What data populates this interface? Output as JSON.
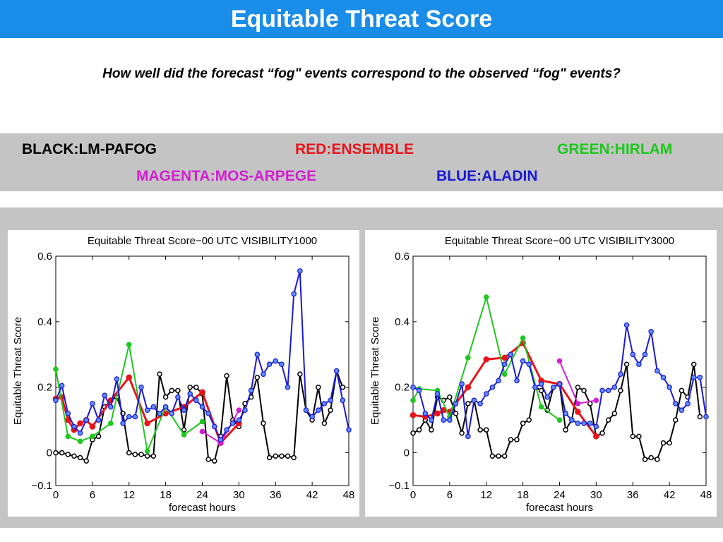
{
  "header": {
    "title": "Equitable Threat Score"
  },
  "question": "How well did the forecast “fog\" events correspond to the observed “fog\" events?",
  "legend": [
    {
      "label": "BLACK:LM-PAFOG",
      "color": "#000000"
    },
    {
      "label": "RED:ENSEMBLE",
      "color": "#e8141b"
    },
    {
      "label": "GREEN:HIRLAM",
      "color": "#1ec81e"
    },
    {
      "label": "MAGENTA:MOS-ARPEGE",
      "color": "#d21ed2"
    },
    {
      "label": "BLUE:ALADIN",
      "color": "#1a1ad2"
    }
  ],
  "chart_data": [
    {
      "type": "line",
      "title": "Equitable Threat Score−00 UTC VISIBILITY1000",
      "xlabel": "forecast hours",
      "ylabel": "Equitable Threat Score",
      "xlim": [
        0,
        48
      ],
      "ylim": [
        -0.1,
        0.6
      ],
      "xticks": [
        0,
        6,
        12,
        18,
        24,
        30,
        36,
        42,
        48
      ],
      "yticks": [
        -0.1,
        0,
        0.2,
        0.4,
        0.6
      ],
      "ytick_labels": [
        "−0.1",
        "0",
        "0.2",
        "0.4",
        "0.6"
      ],
      "grid": false,
      "series": [
        {
          "name": "LM-PAFOG",
          "color": "#000000",
          "x": [
            0,
            1,
            2,
            3,
            4,
            5,
            6,
            7,
            8,
            9,
            10,
            11,
            12,
            13,
            14,
            15,
            16,
            17,
            18,
            19,
            20,
            21,
            22,
            23,
            24,
            25,
            26,
            27,
            28,
            29,
            30,
            31,
            32,
            33,
            34,
            35,
            36,
            37,
            38,
            39,
            40,
            41,
            42,
            43,
            44,
            45,
            46,
            47
          ],
          "y": [
            0,
            0,
            -0.005,
            -0.01,
            -0.015,
            -0.025,
            0.04,
            0.05,
            0.14,
            0.16,
            0.17,
            0.12,
            0,
            -0.005,
            -0.005,
            -0.01,
            -0.01,
            0.24,
            0.17,
            0.19,
            0.19,
            0.07,
            0.2,
            0.2,
            0.18,
            -0.02,
            -0.025,
            0.05,
            0.235,
            0.1,
            0.08,
            0.15,
            0.17,
            0.23,
            0.09,
            -0.015,
            -0.01,
            -0.01,
            -0.01,
            -0.015,
            0.24,
            0.13,
            0.1,
            0.2,
            0.09,
            0.13,
            0.25,
            0.2
          ]
        },
        {
          "name": "ENSEMBLE",
          "color": "#e8141b",
          "x": [
            0,
            1,
            2,
            3,
            4,
            5,
            6,
            9,
            12,
            15,
            18,
            21,
            24,
            27,
            30
          ],
          "y": [
            0.165,
            0.17,
            0.1,
            0.07,
            0.09,
            0.1,
            0.08,
            0.16,
            0.23,
            0.09,
            0.12,
            0.14,
            0.185,
            0.03,
            0.09
          ]
        },
        {
          "name": "HIRLAM",
          "color": "#1ec81e",
          "x": [
            0,
            2,
            4,
            6,
            9,
            12,
            15,
            18,
            21,
            24
          ],
          "y": [
            0.255,
            0.05,
            0.035,
            0.05,
            0.09,
            0.33,
            0.005,
            0.14,
            0.055,
            0.095
          ]
        },
        {
          "name": "MOS-ARPEGE",
          "color": "#d21ed2",
          "x": [
            24,
            27,
            30
          ],
          "y": [
            0.065,
            0.03,
            0.13
          ]
        },
        {
          "name": "ALADIN",
          "color": "#1a1ad2",
          "x": [
            0,
            1,
            2,
            3,
            4,
            5,
            6,
            7,
            8,
            9,
            10,
            11,
            12,
            13,
            14,
            15,
            16,
            17,
            18,
            19,
            20,
            21,
            22,
            23,
            24,
            25,
            26,
            27,
            28,
            29,
            30,
            31,
            32,
            33,
            34,
            35,
            36,
            37,
            38,
            39,
            40,
            41,
            42,
            43,
            44,
            45,
            46,
            47,
            48
          ],
          "y": [
            0.16,
            0.205,
            0.12,
            0.08,
            0.06,
            0.1,
            0.15,
            0.1,
            0.175,
            0.14,
            0.225,
            0.09,
            0.11,
            0.11,
            0.2,
            0.13,
            0.14,
            0.12,
            0.14,
            0.12,
            0.17,
            0.13,
            0.18,
            0.16,
            0.14,
            0.12,
            0.08,
            0.04,
            0.07,
            0.09,
            0.1,
            0.13,
            0.19,
            0.3,
            0.24,
            0.27,
            0.28,
            0.27,
            0.2,
            0.485,
            0.555,
            0.13,
            0.11,
            0.13,
            0.15,
            0.16,
            0.25,
            0.16,
            0.07
          ]
        }
      ]
    },
    {
      "type": "line",
      "title": "Equitable Threat Score−00 UTC VISIBILITY3000",
      "xlabel": "forecast hours",
      "ylabel": "Equitable Threat Score",
      "xlim": [
        0,
        48
      ],
      "ylim": [
        -0.1,
        0.6
      ],
      "xticks": [
        0,
        6,
        12,
        18,
        24,
        30,
        36,
        42,
        48
      ],
      "yticks": [
        -0.1,
        0,
        0.2,
        0.4,
        0.6
      ],
      "ytick_labels": [
        "−0.1",
        "0",
        "0.2",
        "0.4",
        "0.6"
      ],
      "grid": false,
      "series": [
        {
          "name": "LM-PAFOG",
          "color": "#000000",
          "x": [
            0,
            1,
            2,
            3,
            4,
            5,
            6,
            7,
            8,
            9,
            10,
            11,
            12,
            13,
            14,
            15,
            16,
            17,
            18,
            19,
            20,
            21,
            22,
            23,
            24,
            25,
            26,
            27,
            28,
            29,
            30,
            31,
            32,
            33,
            34,
            35,
            36,
            37,
            38,
            39,
            40,
            41,
            42,
            43,
            44,
            45,
            46,
            47
          ],
          "y": [
            0.06,
            0.07,
            0.1,
            0.07,
            0.17,
            0.16,
            0.17,
            0.12,
            0.06,
            0.15,
            0.16,
            0.07,
            0.07,
            -0.01,
            -0.01,
            -0.01,
            0.04,
            0.04,
            0.09,
            0.1,
            0.2,
            0.19,
            0.13,
            0.2,
            0.21,
            0.07,
            0.1,
            0.2,
            0.19,
            0.15,
            0.05,
            0.06,
            0.1,
            0.12,
            0.19,
            0.27,
            0.05,
            0.05,
            -0.02,
            -0.015,
            -0.02,
            0.03,
            0.03,
            0.1,
            0.19,
            0.17,
            0.27,
            0.11
          ]
        },
        {
          "name": "ENSEMBLE",
          "color": "#e8141b",
          "x": [
            0,
            2,
            4,
            5,
            6,
            9,
            12,
            15,
            18,
            21,
            24,
            27,
            30
          ],
          "y": [
            0.115,
            0.11,
            0.12,
            0.13,
            0.125,
            0.2,
            0.285,
            0.29,
            0.335,
            0.22,
            0.21,
            0.125,
            0.05
          ]
        },
        {
          "name": "HIRLAM",
          "color": "#1ec81e",
          "x": [
            0,
            1,
            4,
            6,
            9,
            12,
            15,
            18,
            21,
            24
          ],
          "y": [
            0.16,
            0.195,
            0.19,
            0.11,
            0.29,
            0.475,
            0.24,
            0.35,
            0.14,
            0.1
          ]
        },
        {
          "name": "MOS-ARPEGE",
          "color": "#d21ed2",
          "x": [
            24,
            27,
            30
          ],
          "y": [
            0.28,
            0.15,
            0.16
          ]
        },
        {
          "name": "ALADIN",
          "color": "#1a1ad2",
          "x": [
            0,
            1,
            2,
            3,
            4,
            5,
            6,
            7,
            8,
            9,
            10,
            11,
            12,
            13,
            14,
            15,
            16,
            17,
            18,
            19,
            20,
            21,
            22,
            23,
            24,
            25,
            26,
            27,
            28,
            29,
            30,
            31,
            32,
            33,
            34,
            35,
            36,
            37,
            38,
            39,
            40,
            41,
            42,
            43,
            44,
            45,
            46,
            47,
            48
          ],
          "y": [
            0.2,
            0.19,
            0.12,
            0.1,
            0.18,
            0.1,
            0.1,
            0.15,
            0.21,
            0.05,
            0.16,
            0.15,
            0.18,
            0.2,
            0.22,
            0.27,
            0.3,
            0.22,
            0.28,
            0.27,
            0.2,
            0.21,
            0.17,
            0.2,
            0.21,
            0.12,
            0.1,
            0.09,
            0.09,
            0.09,
            0.08,
            0.19,
            0.19,
            0.2,
            0.24,
            0.39,
            0.3,
            0.27,
            0.3,
            0.37,
            0.25,
            0.23,
            0.2,
            0.15,
            0.13,
            0.15,
            0.23,
            0.23,
            0.11
          ]
        }
      ]
    }
  ]
}
